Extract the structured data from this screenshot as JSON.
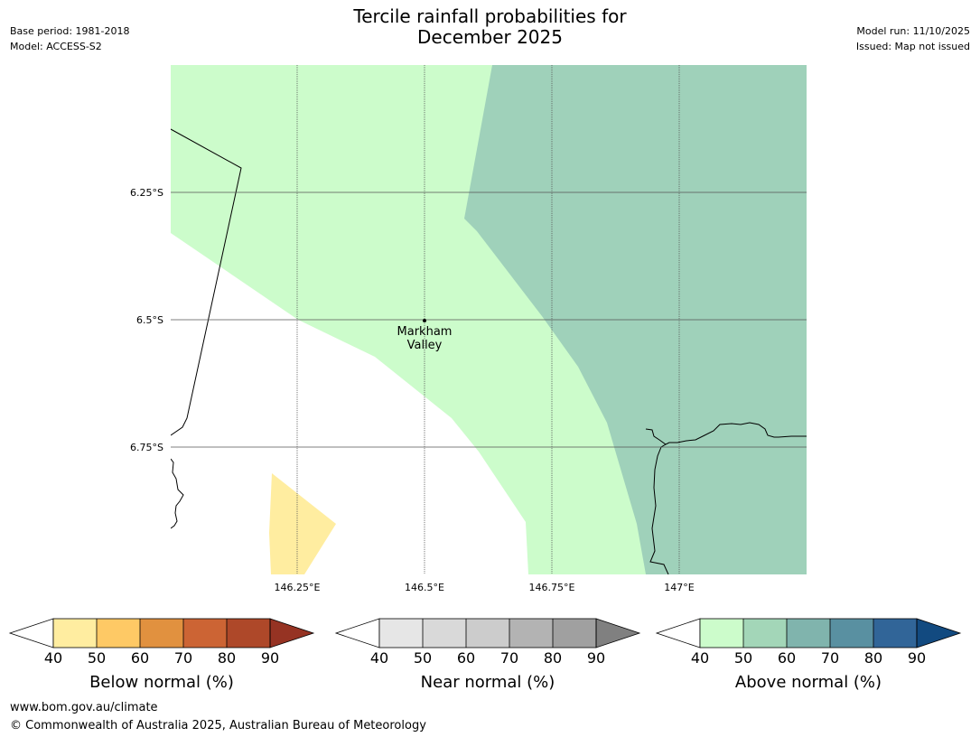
{
  "header": {
    "title_line1": "Tercile rainfall probabilities for",
    "title_line2": "December 2025",
    "base_period": "Base period: 1981-2018",
    "model": "Model: ACCESS-S2",
    "model_run": "Model run: 11/10/2025",
    "issued": "Issued: Map not issued"
  },
  "map": {
    "lat_labels": [
      "6.25°S",
      "6.5°S",
      "6.75°S"
    ],
    "lon_labels": [
      "146.25°E",
      "146.5°E",
      "146.75°E",
      "147°E"
    ],
    "place_name_line1": "Markham",
    "place_name_line2": "Valley",
    "colors": {
      "above_40_50": "#ccfccb",
      "above_50_60": "#9fd1ba",
      "below_40_50": "#ffeda0",
      "grid": "#555555",
      "coast": "#000000"
    }
  },
  "colorbars": [
    {
      "title": "Below normal (%)",
      "ticks": [
        "40",
        "50",
        "60",
        "70",
        "80",
        "90"
      ],
      "colors": [
        "#ffeda0",
        "#fec965",
        "#e1913f",
        "#cc6434",
        "#ae4829",
        "#963323"
      ]
    },
    {
      "title": "Near normal (%)",
      "ticks": [
        "40",
        "50",
        "60",
        "70",
        "80",
        "90"
      ],
      "colors": [
        "#e6e6e6",
        "#d9d9d9",
        "#cccccc",
        "#b3b3b3",
        "#a0a0a0",
        "#808080"
      ]
    },
    {
      "title": "Above normal (%)",
      "ticks": [
        "40",
        "50",
        "60",
        "70",
        "80",
        "90"
      ],
      "colors": [
        "#ccfccb",
        "#a3d6b8",
        "#80b4ad",
        "#5990a1",
        "#316598",
        "#124a80"
      ]
    }
  ],
  "footer": {
    "website": "www.bom.gov.au/climate",
    "copyright": "© Commonwealth of Australia 2025, Australian Bureau of Meteorology"
  }
}
